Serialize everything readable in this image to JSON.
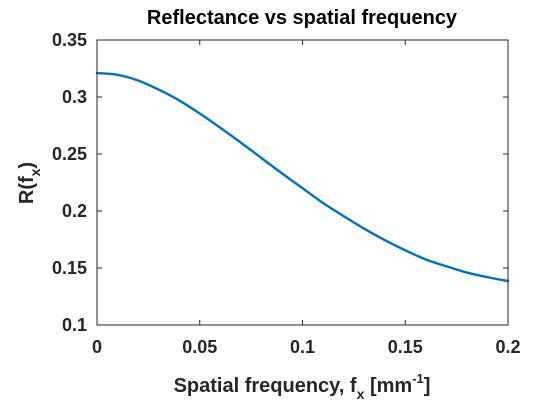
{
  "chart_data": {
    "type": "line",
    "title": "Reflectance vs spatial frequency",
    "xlabel": {
      "prefix": "Spatial frequency, f",
      "sub": "x",
      "middle": " [mm",
      "sup": "-1",
      "suffix": "]"
    },
    "ylabel": {
      "prefix": "R(f",
      "sub": "x",
      "suffix": ")"
    },
    "xlim": [
      0,
      0.2
    ],
    "ylim": [
      0.1,
      0.35
    ],
    "xticks": [
      0,
      0.05,
      0.1,
      0.15,
      0.2
    ],
    "xtick_labels": [
      "0",
      "0.05",
      "0.1",
      "0.15",
      "0.2"
    ],
    "yticks": [
      0.1,
      0.15,
      0.2,
      0.25,
      0.3,
      0.35
    ],
    "ytick_labels": [
      "0.1",
      "0.15",
      "0.2",
      "0.25",
      "0.3",
      "0.35"
    ],
    "grid": false,
    "series": [
      {
        "color": "#0072BD",
        "x": [
          0,
          0.01,
          0.02,
          0.03,
          0.04,
          0.05,
          0.06,
          0.07,
          0.08,
          0.09,
          0.1,
          0.11,
          0.12,
          0.13,
          0.14,
          0.15,
          0.16,
          0.17,
          0.18,
          0.19,
          0.2
        ],
        "y": [
          0.321,
          0.3195,
          0.3145,
          0.3065,
          0.297,
          0.2855,
          0.273,
          0.26,
          0.2465,
          0.233,
          0.22,
          0.207,
          0.1955,
          0.1845,
          0.1745,
          0.1655,
          0.1575,
          0.1515,
          0.146,
          0.142,
          0.1385
        ]
      }
    ]
  }
}
